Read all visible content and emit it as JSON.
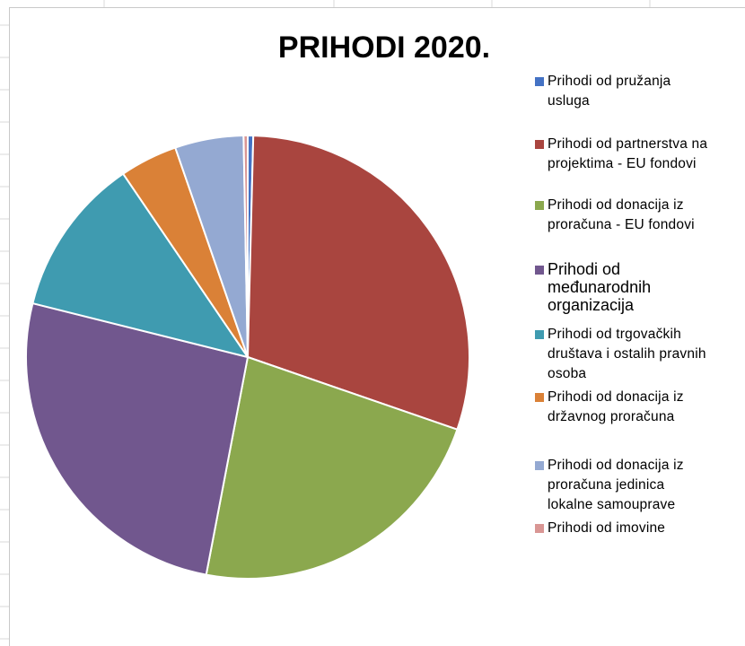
{
  "chart_data": {
    "type": "pie",
    "title": "PRIHODI 2020.",
    "categories": [
      "Prihodi od pružanja usluga",
      "Prihodi od partnerstva na projektima - EU fondovi",
      "Prihodi od donacija iz proračuna - EU fondovi",
      "Prihodi od međunarodnih organizacija",
      "Prihodi od trgovačkih društava i ostalih pravnih osoba",
      "Prihodi od donacija iz državnog proračuna",
      "Prihodi od donacija iz proračuna jedinica lokalne samouprave",
      "Prihodi od imovine"
    ],
    "values": [
      0.4,
      29.9,
      22.7,
      25.9,
      11.6,
      4.2,
      5.0,
      0.3
    ],
    "colors": [
      "#4472C4",
      "#A9453F",
      "#8BA84E",
      "#71578E",
      "#3F9BB0",
      "#DA8137",
      "#94A9D2",
      "#D99694"
    ],
    "start_angle_deg": 0,
    "direction": "clockwise",
    "legend_position": "right"
  },
  "legend": {
    "items": [
      {
        "lines": [
          "Prihodi od pružanja",
          "usluga"
        ]
      },
      {
        "lines": [
          "Prihodi od partnerstva na",
          "projektima - EU fondovi"
        ]
      },
      {
        "lines": [
          "Prihodi od donacija iz",
          "proračuna - EU fondovi"
        ]
      },
      {
        "lines": [
          "Prihodi od",
          "međunarodnih",
          "organizacija"
        ]
      },
      {
        "lines": [
          "Prihodi od trgovačkih",
          "društava i ostalih pravnih",
          "osoba"
        ]
      },
      {
        "lines": [
          "Prihodi od donacija iz",
          "državnog proračuna"
        ]
      },
      {
        "lines": [
          "Prihodi od donacija iz",
          "proračuna jedinica",
          "lokalne samouprave"
        ]
      },
      {
        "lines": [
          "Prihodi od imovine"
        ]
      }
    ]
  }
}
